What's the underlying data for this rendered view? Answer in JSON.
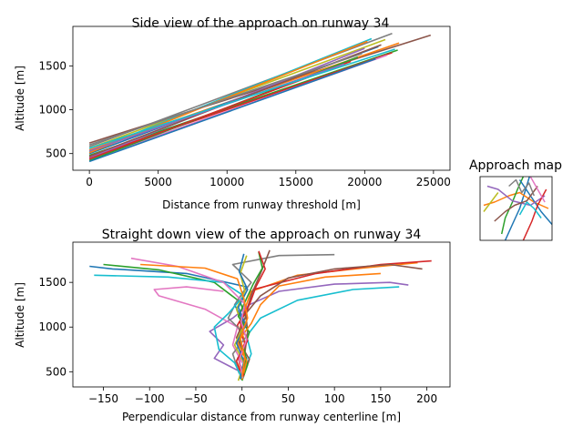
{
  "colors": [
    "#1f77b4",
    "#ff7f0e",
    "#2ca02c",
    "#d62728",
    "#9467bd",
    "#8c564b",
    "#e377c2",
    "#7f7f7f",
    "#bcbd22",
    "#17becf"
  ],
  "chart_data": [
    {
      "id": "side",
      "type": "line",
      "title": "Side view of the approach on runway 34",
      "xlabel": "Distance from runway threshold [m]",
      "ylabel": "Altitude [m]",
      "xlim": [
        -1200,
        26200
      ],
      "ylim": [
        310,
        1950
      ],
      "xticks": [
        0,
        5000,
        10000,
        15000,
        20000,
        25000
      ],
      "xtick_labels": [
        "0",
        "5000",
        "10000",
        "15000",
        "20000",
        "25000"
      ],
      "yticks": [
        500,
        1000,
        1500
      ],
      "ytick_labels": [
        "500",
        "1000",
        "1500"
      ],
      "grid": false,
      "series": [
        {
          "x": [
            0,
            24800
          ],
          "y": [
            620,
            1850
          ],
          "color": 5
        },
        {
          "x": [
            0,
            22000
          ],
          "y": [
            580,
            1870
          ],
          "color": 7
        },
        {
          "x": [
            0,
            21500
          ],
          "y": [
            560,
            1800
          ],
          "color": 8
        },
        {
          "x": [
            0,
            22500
          ],
          "y": [
            540,
            1760
          ],
          "color": 1
        },
        {
          "x": [
            0,
            20500
          ],
          "y": [
            520,
            1810
          ],
          "color": 9
        },
        {
          "x": [
            0,
            21000
          ],
          "y": [
            500,
            1720
          ],
          "color": 0
        },
        {
          "x": [
            0,
            22400
          ],
          "y": [
            480,
            1680
          ],
          "color": 2
        },
        {
          "x": [
            0,
            22000
          ],
          "y": [
            460,
            1650
          ],
          "color": 3
        },
        {
          "x": [
            0,
            20000
          ],
          "y": [
            450,
            1700
          ],
          "color": 4
        },
        {
          "x": [
            0,
            21600
          ],
          "y": [
            430,
            1620
          ],
          "color": 6
        },
        {
          "x": [
            0,
            19500
          ],
          "y": [
            420,
            1600
          ],
          "color": 2
        },
        {
          "x": [
            0,
            20800
          ],
          "y": [
            410,
            1580
          ],
          "color": 0
        },
        {
          "x": [
            0,
            19000
          ],
          "y": [
            440,
            1550
          ],
          "color": 3
        },
        {
          "x": [
            0,
            21200
          ],
          "y": [
            470,
            1740
          ],
          "color": 5
        },
        {
          "x": [
            0,
            20200
          ],
          "y": [
            510,
            1780
          ],
          "color": 1
        },
        {
          "x": [
            0,
            18500
          ],
          "y": [
            530,
            1520
          ],
          "color": 4
        },
        {
          "x": [
            0,
            22200
          ],
          "y": [
            560,
            1690
          ],
          "color": 9
        },
        {
          "x": [
            0,
            19800
          ],
          "y": [
            600,
            1640
          ],
          "color": 7
        }
      ]
    },
    {
      "id": "down",
      "type": "line",
      "title": "Straight down view of the approach on runway 34",
      "xlabel": "Perpendicular distance from runway centerline [m]",
      "ylabel": "Altitude [m]",
      "xlim": [
        -183,
        225
      ],
      "ylim": [
        330,
        1950
      ],
      "xticks": [
        -150,
        -100,
        -50,
        0,
        50,
        100,
        150,
        200
      ],
      "xtick_labels": [
        "−150",
        "−100",
        "−50",
        "0",
        "50",
        "100",
        "150",
        "200"
      ],
      "yticks": [
        500,
        1000,
        1500
      ],
      "ytick_labels": [
        "500",
        "1000",
        "1500"
      ],
      "grid": false,
      "series": [
        {
          "x": [
            0,
            -3,
            4,
            -2,
            3,
            10,
            60,
            130,
            190
          ],
          "y": [
            420,
            600,
            800,
            1000,
            1200,
            1400,
            1580,
            1660,
            1720
          ],
          "color": 1
        },
        {
          "x": [
            1,
            5,
            -4,
            2,
            -8,
            5,
            -60,
            -140,
            -165
          ],
          "y": [
            430,
            650,
            850,
            1050,
            1250,
            1450,
            1600,
            1650,
            1680
          ],
          "color": 0
        },
        {
          "x": [
            0,
            -6,
            3,
            -5,
            6,
            12,
            80,
            150,
            205
          ],
          "y": [
            440,
            620,
            820,
            1020,
            1220,
            1420,
            1600,
            1700,
            1740
          ],
          "color": 3
        },
        {
          "x": [
            -1,
            4,
            -3,
            5,
            -2,
            -30,
            -90,
            -150
          ],
          "y": [
            410,
            640,
            860,
            1080,
            1280,
            1500,
            1640,
            1700
          ],
          "color": 2
        },
        {
          "x": [
            -2,
            -30,
            -20,
            -35,
            -10,
            8,
            40,
            100,
            160,
            180
          ],
          "y": [
            500,
            650,
            800,
            950,
            1100,
            1250,
            1400,
            1480,
            1500,
            1470
          ],
          "color": 4
        },
        {
          "x": [
            0,
            -10,
            -5,
            -40,
            -90,
            -95,
            -60,
            -20
          ],
          "y": [
            600,
            800,
            1000,
            1200,
            1350,
            1420,
            1450,
            1400
          ],
          "color": 6
        },
        {
          "x": [
            2,
            10,
            5,
            20,
            60,
            120,
            170
          ],
          "y": [
            500,
            700,
            900,
            1100,
            1300,
            1420,
            1450
          ],
          "color": 9
        },
        {
          "x": [
            0,
            3,
            6,
            4,
            20,
            50,
            100,
            160,
            195
          ],
          "y": [
            450,
            700,
            950,
            1150,
            1350,
            1550,
            1650,
            1700,
            1650
          ],
          "color": 5
        },
        {
          "x": [
            -3,
            -10,
            5,
            -15,
            -5,
            10,
            -10,
            40,
            100
          ],
          "y": [
            480,
            700,
            900,
            1100,
            1300,
            1500,
            1700,
            1800,
            1810
          ],
          "color": 7
        },
        {
          "x": [
            1,
            8,
            -6,
            4,
            10,
            20,
            30
          ],
          "y": [
            430,
            640,
            880,
            1120,
            1360,
            1600,
            1860
          ],
          "color": 5
        },
        {
          "x": [
            -4,
            2,
            -8,
            1,
            -6,
            3,
            -2,
            5
          ],
          "y": [
            400,
            600,
            800,
            1000,
            1200,
            1400,
            1600,
            1800
          ],
          "color": 8
        },
        {
          "x": [
            0,
            -8,
            -25,
            -30,
            -15,
            2,
            -20,
            -80,
            -160
          ],
          "y": [
            420,
            600,
            750,
            1000,
            1150,
            1350,
            1500,
            1560,
            1580
          ],
          "color": 9
        },
        {
          "x": [
            0,
            6,
            2,
            8,
            -4,
            4,
            12,
            22,
            18
          ],
          "y": [
            400,
            580,
            760,
            940,
            1120,
            1300,
            1480,
            1660,
            1840
          ],
          "color": 2
        },
        {
          "x": [
            0,
            5,
            -5,
            10,
            20,
            40,
            90,
            150
          ],
          "y": [
            410,
            620,
            830,
            1040,
            1250,
            1460,
            1560,
            1600
          ],
          "color": 1
        },
        {
          "x": [
            2,
            -4,
            6,
            -2,
            8,
            15,
            25,
            18
          ],
          "y": [
            450,
            650,
            850,
            1050,
            1250,
            1450,
            1650,
            1850
          ],
          "color": 3
        },
        {
          "x": [
            -2,
            2,
            -6,
            4,
            -4,
            6,
            -3,
            2
          ],
          "y": [
            420,
            620,
            820,
            1020,
            1220,
            1420,
            1620,
            1820
          ],
          "color": 0
        },
        {
          "x": [
            1,
            -3,
            5,
            -1,
            3,
            -20,
            -70,
            -120
          ],
          "y": [
            430,
            640,
            860,
            1060,
            1260,
            1500,
            1680,
            1770
          ],
          "color": 6
        },
        {
          "x": [
            0,
            3,
            -2,
            6,
            2,
            -5,
            -40,
            -110
          ],
          "y": [
            440,
            660,
            880,
            1100,
            1320,
            1540,
            1660,
            1700
          ],
          "color": 1
        }
      ]
    },
    {
      "id": "map",
      "type": "line",
      "title": "Approach map",
      "xlim": [
        0,
        1
      ],
      "ylim": [
        0,
        1
      ],
      "grid": false,
      "axes_visible": false,
      "series": [
        {
          "x": [
            0.35,
            0.45,
            0.55,
            0.62,
            0.7
          ],
          "y": [
            0.0,
            0.25,
            0.5,
            0.75,
            1.05
          ],
          "color": 0
        },
        {
          "x": [
            0.05,
            0.2,
            0.4,
            0.55,
            0.75,
            0.95
          ],
          "y": [
            0.55,
            0.6,
            0.7,
            0.75,
            0.6,
            0.5
          ],
          "color": 1
        },
        {
          "x": [
            0.3,
            0.35,
            0.45,
            0.52,
            0.6
          ],
          "y": [
            0.1,
            0.35,
            0.6,
            0.8,
            1.0
          ],
          "color": 2
        },
        {
          "x": [
            0.55,
            0.7,
            0.85,
            1.0
          ],
          "y": [
            0.95,
            0.7,
            0.45,
            0.25
          ],
          "color": 0
        },
        {
          "x": [
            0.1,
            0.25,
            0.45,
            0.7,
            0.9
          ],
          "y": [
            0.85,
            0.8,
            0.62,
            0.55,
            0.7
          ],
          "color": 4
        },
        {
          "x": [
            0.6,
            0.72,
            0.8,
            0.92
          ],
          "y": [
            0.0,
            0.3,
            0.55,
            0.8
          ],
          "color": 3
        },
        {
          "x": [
            0.2,
            0.35,
            0.48,
            0.65,
            0.8
          ],
          "y": [
            0.3,
            0.45,
            0.55,
            0.62,
            0.85
          ],
          "color": 5
        },
        {
          "x": [
            0.4,
            0.5,
            0.58,
            0.68,
            0.75
          ],
          "y": [
            0.85,
            0.95,
            0.75,
            0.9,
            0.7
          ],
          "color": 7
        },
        {
          "x": [
            0.05,
            0.15,
            0.25
          ],
          "y": [
            0.45,
            0.6,
            0.75
          ],
          "color": 8
        },
        {
          "x": [
            0.55,
            0.65,
            0.75,
            0.85
          ],
          "y": [
            0.4,
            0.6,
            0.5,
            0.35
          ],
          "color": 9
        },
        {
          "x": [
            0.7,
            0.8,
            0.9
          ],
          "y": [
            1.0,
            0.8,
            0.6
          ],
          "color": 6
        }
      ]
    }
  ]
}
